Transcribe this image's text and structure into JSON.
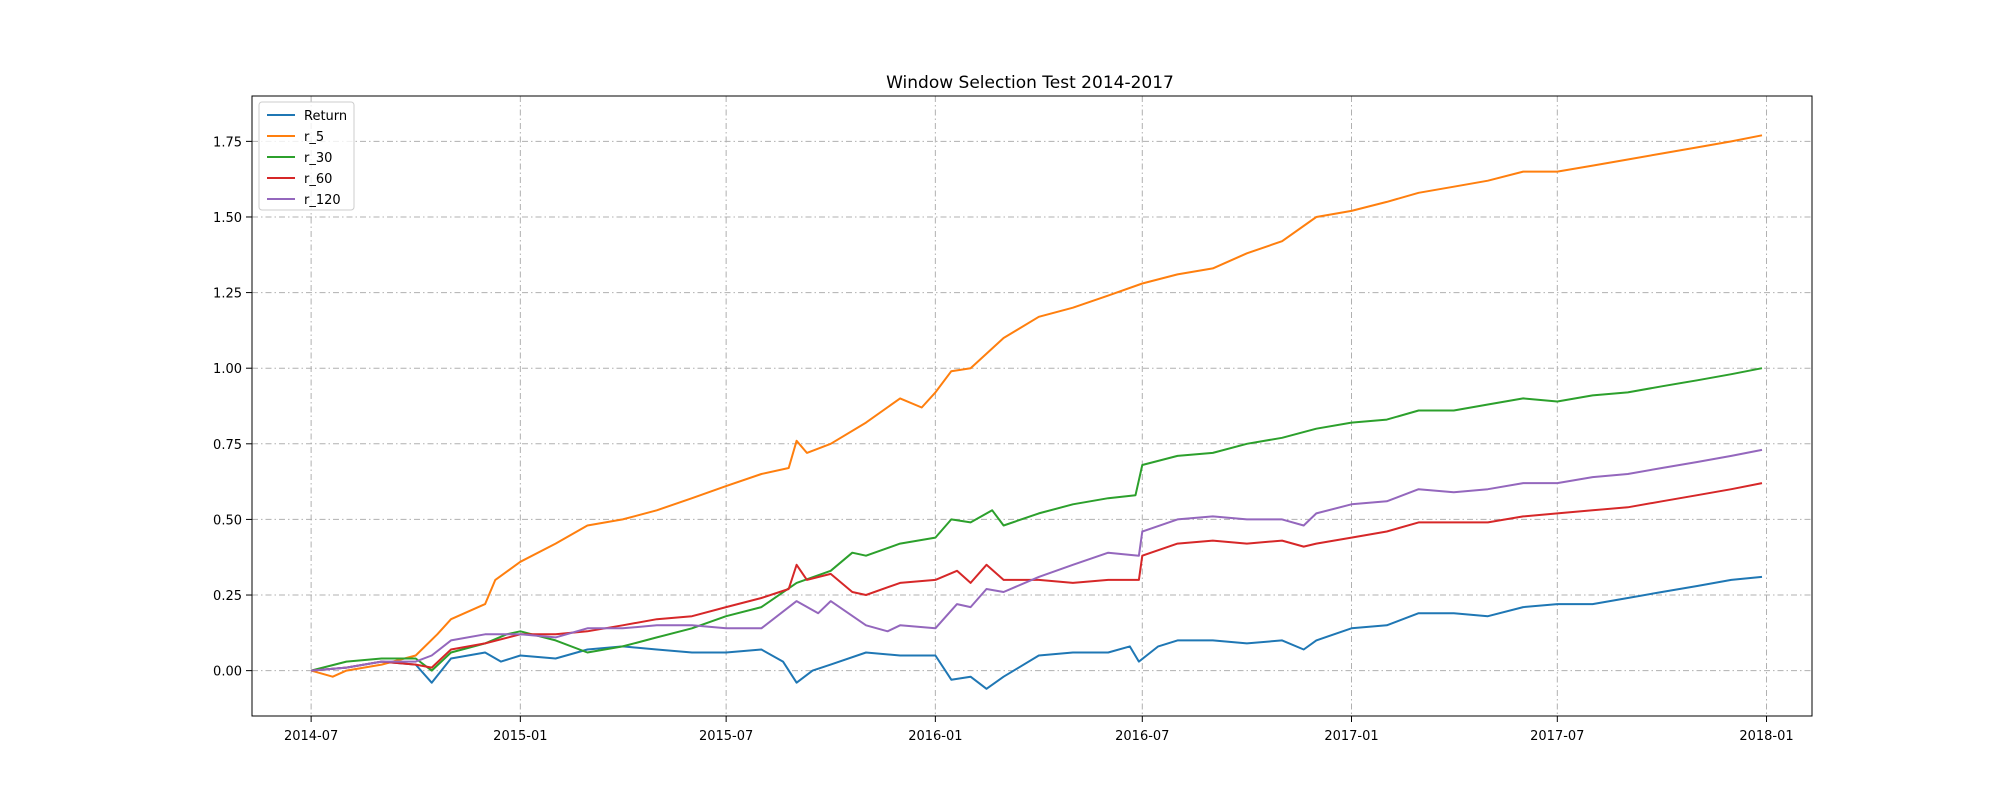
{
  "chart_data": {
    "type": "line",
    "title": "Window Selection Test 2014-2017",
    "xlabel": "",
    "ylabel": "",
    "x_range": [
      "2014-05-10",
      "2018-02-10"
    ],
    "ylim": [
      -0.15,
      1.9
    ],
    "x_ticks": [
      "2014-07",
      "2015-01",
      "2015-07",
      "2016-01",
      "2016-07",
      "2017-01",
      "2017-07",
      "2018-01"
    ],
    "y_ticks": [
      0.0,
      0.25,
      0.5,
      0.75,
      1.0,
      1.25,
      1.5,
      1.75
    ],
    "y_tick_labels": [
      "0.00",
      "0.25",
      "0.50",
      "0.75",
      "1.00",
      "1.25",
      "1.50",
      "1.75"
    ],
    "grid": true,
    "grid_style": "dash-dot",
    "legend_position": "top-left",
    "series": [
      {
        "name": "Return",
        "color": "#1f77b4",
        "points": [
          [
            "2014-07-01",
            0.0
          ],
          [
            "2014-08-01",
            0.01
          ],
          [
            "2014-09-01",
            0.03
          ],
          [
            "2014-10-01",
            0.02
          ],
          [
            "2014-10-15",
            -0.04
          ],
          [
            "2014-11-01",
            0.04
          ],
          [
            "2014-12-01",
            0.06
          ],
          [
            "2014-12-15",
            0.03
          ],
          [
            "2015-01-01",
            0.05
          ],
          [
            "2015-02-01",
            0.04
          ],
          [
            "2015-03-01",
            0.07
          ],
          [
            "2015-04-01",
            0.08
          ],
          [
            "2015-05-01",
            0.07
          ],
          [
            "2015-06-01",
            0.06
          ],
          [
            "2015-07-01",
            0.06
          ],
          [
            "2015-08-01",
            0.07
          ],
          [
            "2015-08-20",
            0.03
          ],
          [
            "2015-09-01",
            -0.04
          ],
          [
            "2015-09-15",
            0.0
          ],
          [
            "2015-10-01",
            0.02
          ],
          [
            "2015-11-01",
            0.06
          ],
          [
            "2015-12-01",
            0.05
          ],
          [
            "2016-01-01",
            0.05
          ],
          [
            "2016-01-15",
            -0.03
          ],
          [
            "2016-02-01",
            -0.02
          ],
          [
            "2016-02-15",
            -0.06
          ],
          [
            "2016-03-01",
            -0.02
          ],
          [
            "2016-04-01",
            0.05
          ],
          [
            "2016-05-01",
            0.06
          ],
          [
            "2016-06-01",
            0.06
          ],
          [
            "2016-06-20",
            0.08
          ],
          [
            "2016-06-28",
            0.03
          ],
          [
            "2016-07-15",
            0.08
          ],
          [
            "2016-08-01",
            0.1
          ],
          [
            "2016-09-01",
            0.1
          ],
          [
            "2016-10-01",
            0.09
          ],
          [
            "2016-11-01",
            0.1
          ],
          [
            "2016-11-20",
            0.07
          ],
          [
            "2016-12-01",
            0.1
          ],
          [
            "2017-01-01",
            0.14
          ],
          [
            "2017-02-01",
            0.15
          ],
          [
            "2017-03-01",
            0.19
          ],
          [
            "2017-04-01",
            0.19
          ],
          [
            "2017-05-01",
            0.18
          ],
          [
            "2017-06-01",
            0.21
          ],
          [
            "2017-07-01",
            0.22
          ],
          [
            "2017-08-01",
            0.22
          ],
          [
            "2017-09-01",
            0.24
          ],
          [
            "2017-10-01",
            0.26
          ],
          [
            "2017-11-01",
            0.28
          ],
          [
            "2017-12-01",
            0.3
          ],
          [
            "2017-12-28",
            0.31
          ]
        ]
      },
      {
        "name": "r_5",
        "color": "#ff7f0e",
        "points": [
          [
            "2014-07-01",
            0.0
          ],
          [
            "2014-07-20",
            -0.02
          ],
          [
            "2014-08-01",
            0.0
          ],
          [
            "2014-09-01",
            0.02
          ],
          [
            "2014-10-01",
            0.05
          ],
          [
            "2014-10-20",
            0.12
          ],
          [
            "2014-11-01",
            0.17
          ],
          [
            "2014-12-01",
            0.22
          ],
          [
            "2014-12-10",
            0.3
          ],
          [
            "2015-01-01",
            0.36
          ],
          [
            "2015-02-01",
            0.42
          ],
          [
            "2015-03-01",
            0.48
          ],
          [
            "2015-04-01",
            0.5
          ],
          [
            "2015-05-01",
            0.53
          ],
          [
            "2015-06-01",
            0.57
          ],
          [
            "2015-07-01",
            0.61
          ],
          [
            "2015-08-01",
            0.65
          ],
          [
            "2015-08-25",
            0.67
          ],
          [
            "2015-09-01",
            0.76
          ],
          [
            "2015-09-10",
            0.72
          ],
          [
            "2015-10-01",
            0.75
          ],
          [
            "2015-11-01",
            0.82
          ],
          [
            "2015-12-01",
            0.9
          ],
          [
            "2015-12-20",
            0.87
          ],
          [
            "2016-01-01",
            0.92
          ],
          [
            "2016-01-15",
            0.99
          ],
          [
            "2016-02-01",
            1.0
          ],
          [
            "2016-03-01",
            1.1
          ],
          [
            "2016-04-01",
            1.17
          ],
          [
            "2016-05-01",
            1.2
          ],
          [
            "2016-06-01",
            1.24
          ],
          [
            "2016-07-01",
            1.28
          ],
          [
            "2016-08-01",
            1.31
          ],
          [
            "2016-09-01",
            1.33
          ],
          [
            "2016-10-01",
            1.38
          ],
          [
            "2016-11-01",
            1.42
          ],
          [
            "2016-12-01",
            1.5
          ],
          [
            "2017-01-01",
            1.52
          ],
          [
            "2017-02-01",
            1.55
          ],
          [
            "2017-03-01",
            1.58
          ],
          [
            "2017-04-01",
            1.6
          ],
          [
            "2017-05-01",
            1.62
          ],
          [
            "2017-06-01",
            1.65
          ],
          [
            "2017-07-01",
            1.65
          ],
          [
            "2017-08-01",
            1.67
          ],
          [
            "2017-09-01",
            1.69
          ],
          [
            "2017-10-01",
            1.71
          ],
          [
            "2017-11-01",
            1.73
          ],
          [
            "2017-12-01",
            1.75
          ],
          [
            "2017-12-28",
            1.77
          ]
        ]
      },
      {
        "name": "r_30",
        "color": "#2ca02c",
        "points": [
          [
            "2014-07-01",
            0.0
          ],
          [
            "2014-08-01",
            0.03
          ],
          [
            "2014-09-01",
            0.04
          ],
          [
            "2014-10-01",
            0.04
          ],
          [
            "2014-10-15",
            0.0
          ],
          [
            "2014-11-01",
            0.06
          ],
          [
            "2014-12-01",
            0.09
          ],
          [
            "2014-12-20",
            0.12
          ],
          [
            "2015-01-01",
            0.13
          ],
          [
            "2015-02-01",
            0.1
          ],
          [
            "2015-03-01",
            0.06
          ],
          [
            "2015-04-01",
            0.08
          ],
          [
            "2015-05-01",
            0.11
          ],
          [
            "2015-06-01",
            0.14
          ],
          [
            "2015-07-01",
            0.18
          ],
          [
            "2015-08-01",
            0.21
          ],
          [
            "2015-09-01",
            0.29
          ],
          [
            "2015-10-01",
            0.33
          ],
          [
            "2015-10-20",
            0.39
          ],
          [
            "2015-11-01",
            0.38
          ],
          [
            "2015-12-01",
            0.42
          ],
          [
            "2016-01-01",
            0.44
          ],
          [
            "2016-01-15",
            0.5
          ],
          [
            "2016-02-01",
            0.49
          ],
          [
            "2016-02-20",
            0.53
          ],
          [
            "2016-03-01",
            0.48
          ],
          [
            "2016-04-01",
            0.52
          ],
          [
            "2016-05-01",
            0.55
          ],
          [
            "2016-06-01",
            0.57
          ],
          [
            "2016-06-25",
            0.58
          ],
          [
            "2016-07-01",
            0.68
          ],
          [
            "2016-08-01",
            0.71
          ],
          [
            "2016-09-01",
            0.72
          ],
          [
            "2016-10-01",
            0.75
          ],
          [
            "2016-11-01",
            0.77
          ],
          [
            "2016-12-01",
            0.8
          ],
          [
            "2017-01-01",
            0.82
          ],
          [
            "2017-02-01",
            0.83
          ],
          [
            "2017-03-01",
            0.86
          ],
          [
            "2017-04-01",
            0.86
          ],
          [
            "2017-05-01",
            0.88
          ],
          [
            "2017-06-01",
            0.9
          ],
          [
            "2017-07-01",
            0.89
          ],
          [
            "2017-08-01",
            0.91
          ],
          [
            "2017-09-01",
            0.92
          ],
          [
            "2017-10-01",
            0.94
          ],
          [
            "2017-11-01",
            0.96
          ],
          [
            "2017-12-01",
            0.98
          ],
          [
            "2017-12-28",
            1.0
          ]
        ]
      },
      {
        "name": "r_60",
        "color": "#d62728",
        "points": [
          [
            "2014-07-01",
            0.0
          ],
          [
            "2014-08-01",
            0.01
          ],
          [
            "2014-09-01",
            0.03
          ],
          [
            "2014-10-01",
            0.02
          ],
          [
            "2014-10-15",
            0.01
          ],
          [
            "2014-11-01",
            0.07
          ],
          [
            "2014-12-01",
            0.09
          ],
          [
            "2015-01-01",
            0.12
          ],
          [
            "2015-02-01",
            0.12
          ],
          [
            "2015-03-01",
            0.13
          ],
          [
            "2015-04-01",
            0.15
          ],
          [
            "2015-05-01",
            0.17
          ],
          [
            "2015-06-01",
            0.18
          ],
          [
            "2015-07-01",
            0.21
          ],
          [
            "2015-08-01",
            0.24
          ],
          [
            "2015-08-25",
            0.27
          ],
          [
            "2015-09-01",
            0.35
          ],
          [
            "2015-09-10",
            0.3
          ],
          [
            "2015-10-01",
            0.32
          ],
          [
            "2015-10-20",
            0.26
          ],
          [
            "2015-11-01",
            0.25
          ],
          [
            "2015-12-01",
            0.29
          ],
          [
            "2016-01-01",
            0.3
          ],
          [
            "2016-01-20",
            0.33
          ],
          [
            "2016-02-01",
            0.29
          ],
          [
            "2016-02-15",
            0.35
          ],
          [
            "2016-03-01",
            0.3
          ],
          [
            "2016-04-01",
            0.3
          ],
          [
            "2016-05-01",
            0.29
          ],
          [
            "2016-06-01",
            0.3
          ],
          [
            "2016-06-28",
            0.3
          ],
          [
            "2016-07-01",
            0.38
          ],
          [
            "2016-08-01",
            0.42
          ],
          [
            "2016-09-01",
            0.43
          ],
          [
            "2016-10-01",
            0.42
          ],
          [
            "2016-11-01",
            0.43
          ],
          [
            "2016-11-20",
            0.41
          ],
          [
            "2016-12-01",
            0.42
          ],
          [
            "2017-01-01",
            0.44
          ],
          [
            "2017-02-01",
            0.46
          ],
          [
            "2017-03-01",
            0.49
          ],
          [
            "2017-04-01",
            0.49
          ],
          [
            "2017-05-01",
            0.49
          ],
          [
            "2017-06-01",
            0.51
          ],
          [
            "2017-07-01",
            0.52
          ],
          [
            "2017-08-01",
            0.53
          ],
          [
            "2017-09-01",
            0.54
          ],
          [
            "2017-10-01",
            0.56
          ],
          [
            "2017-11-01",
            0.58
          ],
          [
            "2017-12-01",
            0.6
          ],
          [
            "2017-12-28",
            0.62
          ]
        ]
      },
      {
        "name": "r_120",
        "color": "#9467bd",
        "points": [
          [
            "2014-07-01",
            0.0
          ],
          [
            "2014-08-01",
            0.01
          ],
          [
            "2014-09-01",
            0.03
          ],
          [
            "2014-10-01",
            0.03
          ],
          [
            "2014-10-15",
            0.05
          ],
          [
            "2014-11-01",
            0.1
          ],
          [
            "2014-12-01",
            0.12
          ],
          [
            "2015-01-01",
            0.12
          ],
          [
            "2015-02-01",
            0.11
          ],
          [
            "2015-03-01",
            0.14
          ],
          [
            "2015-04-01",
            0.14
          ],
          [
            "2015-05-01",
            0.15
          ],
          [
            "2015-06-01",
            0.15
          ],
          [
            "2015-07-01",
            0.14
          ],
          [
            "2015-08-01",
            0.14
          ],
          [
            "2015-09-01",
            0.23
          ],
          [
            "2015-09-20",
            0.19
          ],
          [
            "2015-10-01",
            0.23
          ],
          [
            "2015-11-01",
            0.15
          ],
          [
            "2015-11-20",
            0.13
          ],
          [
            "2015-12-01",
            0.15
          ],
          [
            "2016-01-01",
            0.14
          ],
          [
            "2016-01-20",
            0.22
          ],
          [
            "2016-02-01",
            0.21
          ],
          [
            "2016-02-15",
            0.27
          ],
          [
            "2016-03-01",
            0.26
          ],
          [
            "2016-04-01",
            0.31
          ],
          [
            "2016-05-01",
            0.35
          ],
          [
            "2016-06-01",
            0.39
          ],
          [
            "2016-06-28",
            0.38
          ],
          [
            "2016-07-01",
            0.46
          ],
          [
            "2016-08-01",
            0.5
          ],
          [
            "2016-09-01",
            0.51
          ],
          [
            "2016-10-01",
            0.5
          ],
          [
            "2016-11-01",
            0.5
          ],
          [
            "2016-11-20",
            0.48
          ],
          [
            "2016-12-01",
            0.52
          ],
          [
            "2017-01-01",
            0.55
          ],
          [
            "2017-02-01",
            0.56
          ],
          [
            "2017-03-01",
            0.6
          ],
          [
            "2017-04-01",
            0.59
          ],
          [
            "2017-05-01",
            0.6
          ],
          [
            "2017-06-01",
            0.62
          ],
          [
            "2017-07-01",
            0.62
          ],
          [
            "2017-08-01",
            0.64
          ],
          [
            "2017-09-01",
            0.65
          ],
          [
            "2017-10-01",
            0.67
          ],
          [
            "2017-11-01",
            0.69
          ],
          [
            "2017-12-01",
            0.71
          ],
          [
            "2017-12-28",
            0.73
          ]
        ]
      }
    ]
  }
}
